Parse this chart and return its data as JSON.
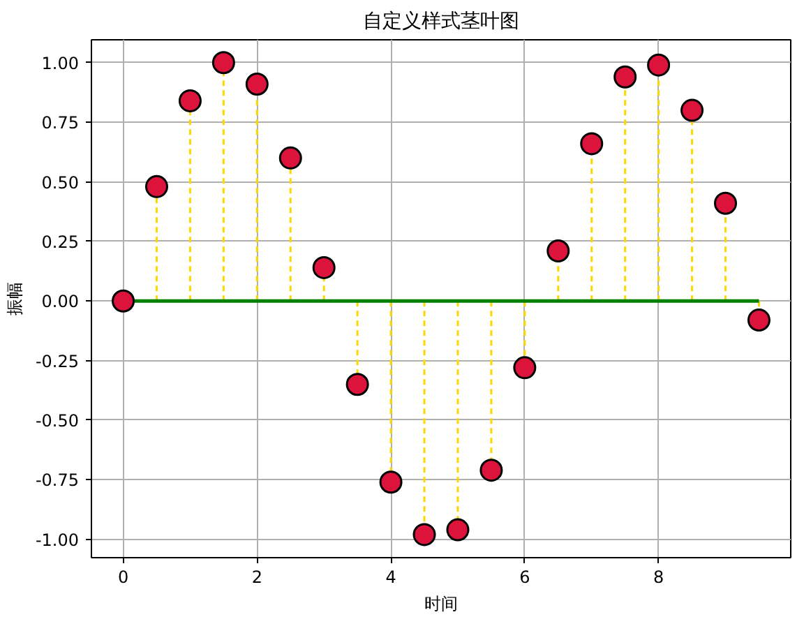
{
  "chart_data": {
    "type": "lollipop",
    "title": "自定义样式茎叶图",
    "xlabel": "时间",
    "ylabel": "振幅",
    "x": [
      0,
      0.5,
      1,
      1.5,
      2,
      2.5,
      3,
      3.5,
      4,
      4.5,
      5,
      5.5,
      6,
      6.5,
      7,
      7.5,
      8,
      8.5,
      9,
      9.5
    ],
    "series": [
      {
        "color": "#dc143c",
        "values": [
          0,
          0.48,
          0.84,
          1.0,
          0.91,
          0.6,
          0.14,
          -0.35,
          -0.76,
          -0.98,
          -0.96,
          -0.71,
          -0.28,
          0.21,
          0.66,
          0.94,
          0.99,
          0.8,
          0.41,
          -0.08
        ]
      }
    ],
    "xlim": [
      -0.475,
      9.975
    ],
    "ylim": [
      -1.077,
      1.096
    ],
    "xticks": [
      0,
      2,
      4,
      6,
      8
    ],
    "yticks": [
      {
        "value": -1,
        "label": "-1.00"
      },
      {
        "value": -0.75,
        "label": "-0.75"
      },
      {
        "value": -0.5,
        "label": "-0.50"
      },
      {
        "value": -0.25,
        "label": "-0.25"
      },
      {
        "value": 0,
        "label": "0.00"
      },
      {
        "value": 0.25,
        "label": "0.25"
      },
      {
        "value": 0.5,
        "label": "0.50"
      },
      {
        "value": 0.75,
        "label": "0.75"
      },
      {
        "value": 1,
        "label": "1.00"
      }
    ],
    "ref_lines": [
      {
        "axis": "y",
        "value": 0,
        "color": "#008000"
      }
    ],
    "grid": true,
    "marker": "circle",
    "line_style": "dashed"
  }
}
